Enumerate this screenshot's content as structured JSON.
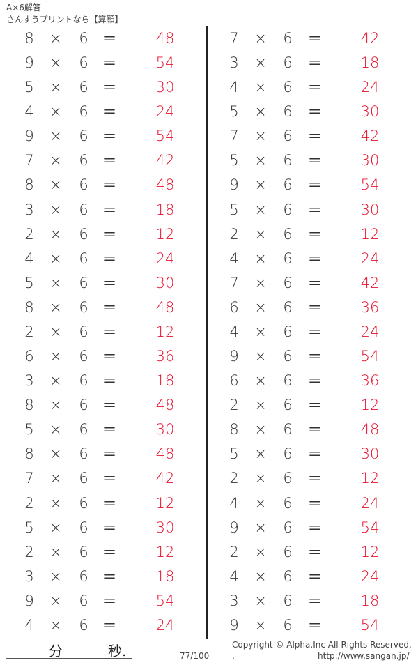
{
  "header": {
    "title": "A×6解答",
    "subtitle": "さんすうプリントなら【算願】"
  },
  "columns": [
    {
      "operands": [
        8,
        9,
        5,
        4,
        9,
        7,
        8,
        3,
        2,
        4,
        5,
        8,
        2,
        6,
        3,
        8,
        5,
        8,
        7,
        2,
        5,
        2,
        3,
        9,
        4
      ]
    },
    {
      "operands": [
        7,
        3,
        4,
        5,
        7,
        5,
        9,
        5,
        2,
        4,
        7,
        6,
        4,
        9,
        6,
        2,
        8,
        5,
        2,
        4,
        9,
        2,
        4,
        3,
        9
      ]
    }
  ],
  "multiplier": 6,
  "symbols": {
    "times": "×",
    "equals": "＝"
  },
  "answers": [
    [
      48,
      54,
      30,
      24,
      54,
      42,
      48,
      18,
      12,
      24,
      30,
      48,
      12,
      36,
      18,
      48,
      30,
      48,
      42,
      12,
      30,
      12,
      18,
      54,
      24
    ],
    [
      42,
      18,
      24,
      30,
      42,
      30,
      54,
      30,
      12,
      24,
      42,
      36,
      24,
      54,
      36,
      12,
      48,
      30,
      12,
      24,
      54,
      12,
      24,
      18,
      54
    ]
  ],
  "footer": {
    "minutes_label": "分",
    "seconds_label": "秒.",
    "page": "77/100",
    "copyright": "Copyright ©  Alpha.Inc All Rights Reserved.",
    "dot": ".",
    "url": "http://www.sangan.jp/"
  },
  "colors": {
    "answer": "#e8112d",
    "text": "#333333"
  }
}
